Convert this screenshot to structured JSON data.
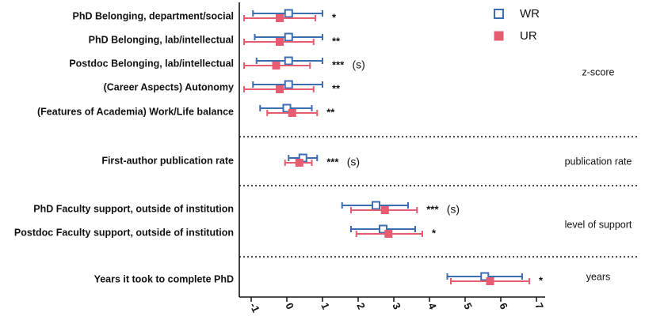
{
  "chart_data": {
    "type": "forest",
    "xlim": [
      -1.4,
      7.2
    ],
    "x_ticks": [
      "-1",
      "0",
      "1",
      "2",
      "3",
      "4",
      "5",
      "6",
      "7"
    ],
    "legend": {
      "placement": "top-right",
      "items": [
        {
          "key": "WR",
          "label": "WR",
          "color": "#3b6db3",
          "marker": "open-square"
        },
        {
          "key": "UR",
          "label": "UR",
          "color": "#e65c70",
          "marker": "filled-square"
        }
      ]
    },
    "groups": [
      {
        "label": "z-score",
        "rows": [
          0,
          1,
          2,
          3,
          4
        ]
      },
      {
        "label": "publication rate",
        "rows": [
          5
        ]
      },
      {
        "label": "level of support",
        "rows": [
          6,
          7
        ]
      },
      {
        "label": "years",
        "rows": [
          8
        ]
      }
    ],
    "rows": [
      {
        "label": "PhD Belonging, department/social",
        "sig": "*",
        "sig_note": "",
        "WR": {
          "est": 0.05,
          "lo": -0.95,
          "hi": 1.0
        },
        "UR": {
          "est": -0.2,
          "lo": -1.2,
          "hi": 0.8
        }
      },
      {
        "label": "PhD Belonging, lab/intellectual",
        "sig": "**",
        "sig_note": "",
        "WR": {
          "est": 0.05,
          "lo": -0.9,
          "hi": 1.0
        },
        "UR": {
          "est": -0.2,
          "lo": -1.2,
          "hi": 0.75
        }
      },
      {
        "label": "Postdoc Belonging, lab/intellectual",
        "sig": "***",
        "sig_note": "(s)",
        "WR": {
          "est": 0.05,
          "lo": -0.85,
          "hi": 1.0
        },
        "UR": {
          "est": -0.3,
          "lo": -1.2,
          "hi": 0.65
        }
      },
      {
        "label": "(Career Aspects) Autonomy",
        "sig": "**",
        "sig_note": "",
        "WR": {
          "est": 0.05,
          "lo": -0.95,
          "hi": 1.0
        },
        "UR": {
          "est": -0.2,
          "lo": -1.2,
          "hi": 0.75
        }
      },
      {
        "label": "(Features of Academia) Work/Life balance",
        "sig": "**",
        "sig_note": "",
        "WR": {
          "est": 0.0,
          "lo": -0.75,
          "hi": 0.7
        },
        "UR": {
          "est": 0.15,
          "lo": -0.55,
          "hi": 0.85
        }
      },
      {
        "label": "First-author publication rate",
        "sig": "***",
        "sig_note": "(s)",
        "WR": {
          "est": 0.45,
          "lo": 0.05,
          "hi": 0.85
        },
        "UR": {
          "est": 0.35,
          "lo": -0.05,
          "hi": 0.7
        }
      },
      {
        "label": "PhD Faculty support, outside of institution",
        "sig": "***",
        "sig_note": "(s)",
        "WR": {
          "est": 2.5,
          "lo": 1.55,
          "hi": 3.4
        },
        "UR": {
          "est": 2.75,
          "lo": 1.8,
          "hi": 3.65
        }
      },
      {
        "label": "Postdoc Faculty support, outside of institution",
        "sig": "*",
        "sig_note": "",
        "WR": {
          "est": 2.7,
          "lo": 1.8,
          "hi": 3.6
        },
        "UR": {
          "est": 2.85,
          "lo": 1.95,
          "hi": 3.8
        }
      },
      {
        "label": "Years it took to complete PhD",
        "sig": "*",
        "sig_note": "",
        "WR": {
          "est": 5.55,
          "lo": 4.5,
          "hi": 6.6
        },
        "UR": {
          "est": 5.7,
          "lo": 4.6,
          "hi": 6.8
        }
      }
    ]
  }
}
